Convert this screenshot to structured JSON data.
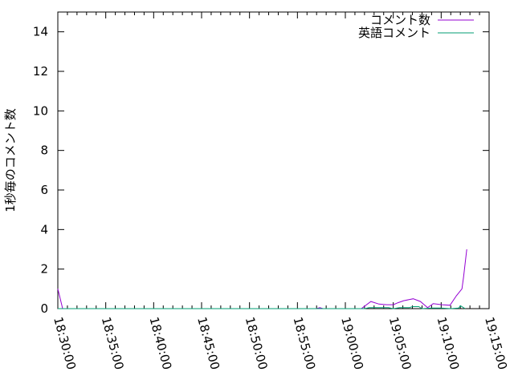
{
  "chart_data": {
    "type": "line",
    "title": "",
    "xlabel": "",
    "ylabel": "1秒毎のコメント数",
    "xlim": [
      "18:30:00",
      "19:15:00"
    ],
    "ylim": [
      0,
      15
    ],
    "x_ticks": [
      "18:30:00",
      "18:35:00",
      "18:40:00",
      "18:45:00",
      "18:50:00",
      "18:55:00",
      "19:00:00",
      "19:05:00",
      "19:10:00",
      "19:15:00"
    ],
    "y_ticks": [
      0,
      2,
      4,
      6,
      8,
      10,
      12,
      14
    ],
    "y_tick_labels": [
      "0",
      "2",
      "4",
      "6",
      "8",
      "10",
      "12",
      "14"
    ],
    "grid": false,
    "legend_position": "top-right",
    "series": [
      {
        "name": "コメント数",
        "color": "#9400d3",
        "x": [
          "18:30:00",
          "18:30:30",
          "18:57:00",
          "18:57:20",
          "18:57:40",
          "19:01:40",
          "19:02:40",
          "19:03:30",
          "19:04:20",
          "19:05:00",
          "19:05:30",
          "19:06:05",
          "19:07:05",
          "19:07:50",
          "19:08:35",
          "19:09:10",
          "19:10:05",
          "19:10:55",
          "19:11:35",
          "19:12:10",
          "19:12:20",
          "19:12:40"
        ],
        "y": [
          1.0,
          0,
          0,
          0.05,
          0,
          0,
          0.36,
          0.23,
          0.2,
          0.2,
          0.3,
          0.4,
          0.5,
          0.36,
          0.05,
          0.25,
          0.2,
          0.17,
          0.65,
          1.0,
          1.6,
          3.0
        ]
      },
      {
        "name": "英語コメント",
        "color": "#009e73",
        "x": [
          "18:30:00",
          "19:02:00",
          "19:02:30",
          "19:04:30",
          "19:05:00",
          "19:05:40",
          "19:06:40",
          "19:07:00",
          "19:07:40",
          "19:08:00",
          "19:09:00",
          "19:10:00",
          "19:11:00",
          "19:11:50",
          "19:12:00",
          "19:12:30"
        ],
        "y": [
          0,
          0,
          0.05,
          0.05,
          0,
          0.05,
          0.05,
          0.1,
          0.1,
          0,
          0.03,
          0.03,
          0,
          0.03,
          0.15,
          0
        ]
      }
    ]
  }
}
